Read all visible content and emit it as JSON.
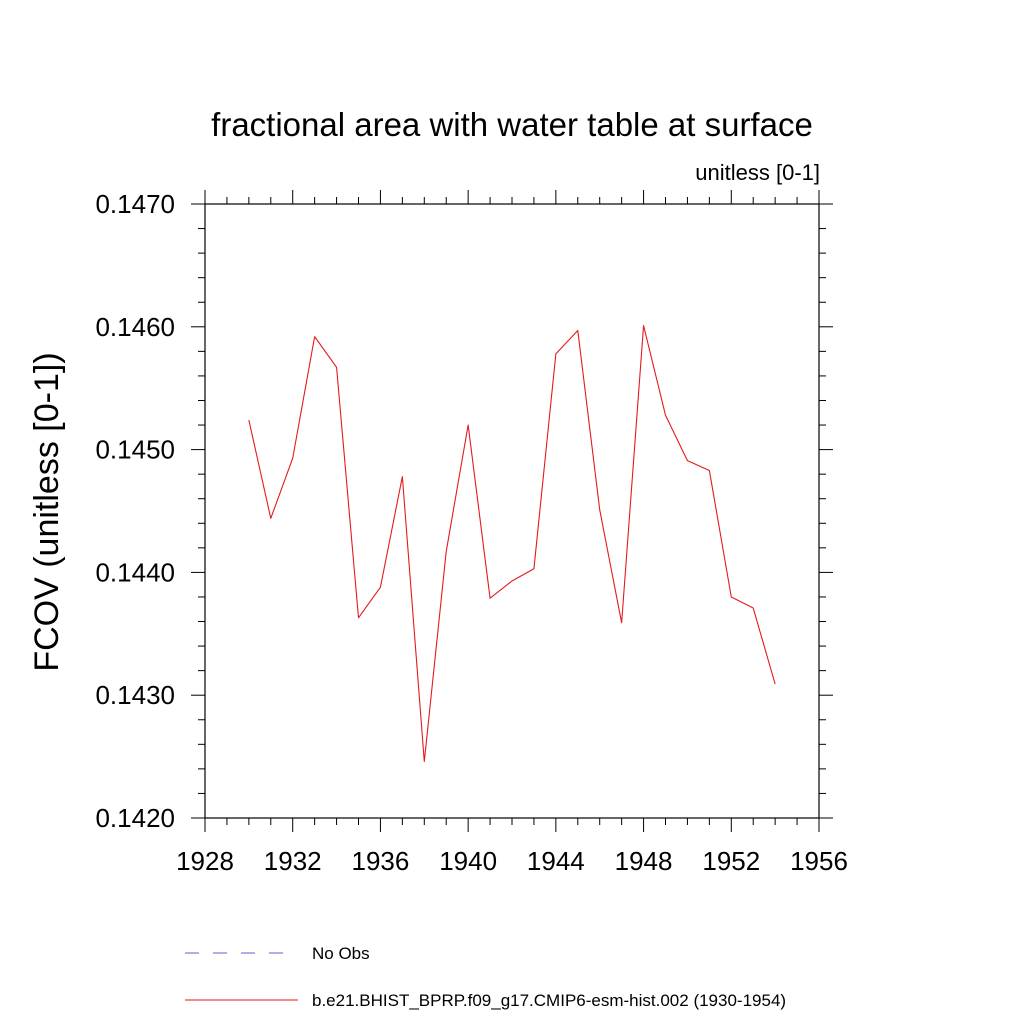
{
  "chart_data": {
    "type": "line",
    "title": "fractional area with water table at surface",
    "units_label": "unitless [0-1]",
    "ylabel": "FCOV  (unitless [0-1])",
    "xlabel": "",
    "xlim": [
      1928,
      1956
    ],
    "ylim": [
      0.142,
      0.147
    ],
    "x_ticks": [
      1928,
      1932,
      1936,
      1940,
      1944,
      1948,
      1952,
      1956
    ],
    "x_tick_labels": [
      "1928",
      "1932",
      "1936",
      "1940",
      "1944",
      "1948",
      "1952",
      "1956"
    ],
    "y_ticks": [
      0.142,
      0.143,
      0.144,
      0.145,
      0.146,
      0.147
    ],
    "y_tick_labels": [
      "0.1420",
      "0.1430",
      "0.1440",
      "0.1450",
      "0.1460",
      "0.1470"
    ],
    "series": [
      {
        "name": "b.e21.BHIST_BPRP.f09_g17.CMIP6-esm-hist.002 (1930-1954)",
        "color": "#e41a1c",
        "style": "solid",
        "x": [
          1930,
          1931,
          1932,
          1933,
          1934,
          1935,
          1936,
          1937,
          1938,
          1939,
          1940,
          1941,
          1942,
          1943,
          1944,
          1945,
          1946,
          1947,
          1948,
          1949,
          1950,
          1951,
          1952,
          1953,
          1954
        ],
        "values": [
          0.14524,
          0.14444,
          0.14493,
          0.14592,
          0.14567,
          0.14363,
          0.14388,
          0.14478,
          0.14246,
          0.14417,
          0.1452,
          0.14379,
          0.14393,
          0.14403,
          0.14578,
          0.14597,
          0.14451,
          0.14359,
          0.14601,
          0.14528,
          0.14491,
          0.14483,
          0.1438,
          0.14371,
          0.14309
        ]
      }
    ],
    "legend": [
      {
        "label": "No Obs",
        "color": "#6a5acd",
        "style": "dashed"
      },
      {
        "label": "b.e21.BHIST_BPRP.f09_g17.CMIP6-esm-hist.002 (1930-1954)",
        "color": "#e41a1c",
        "style": "solid"
      }
    ],
    "legend_position": "bottom"
  }
}
